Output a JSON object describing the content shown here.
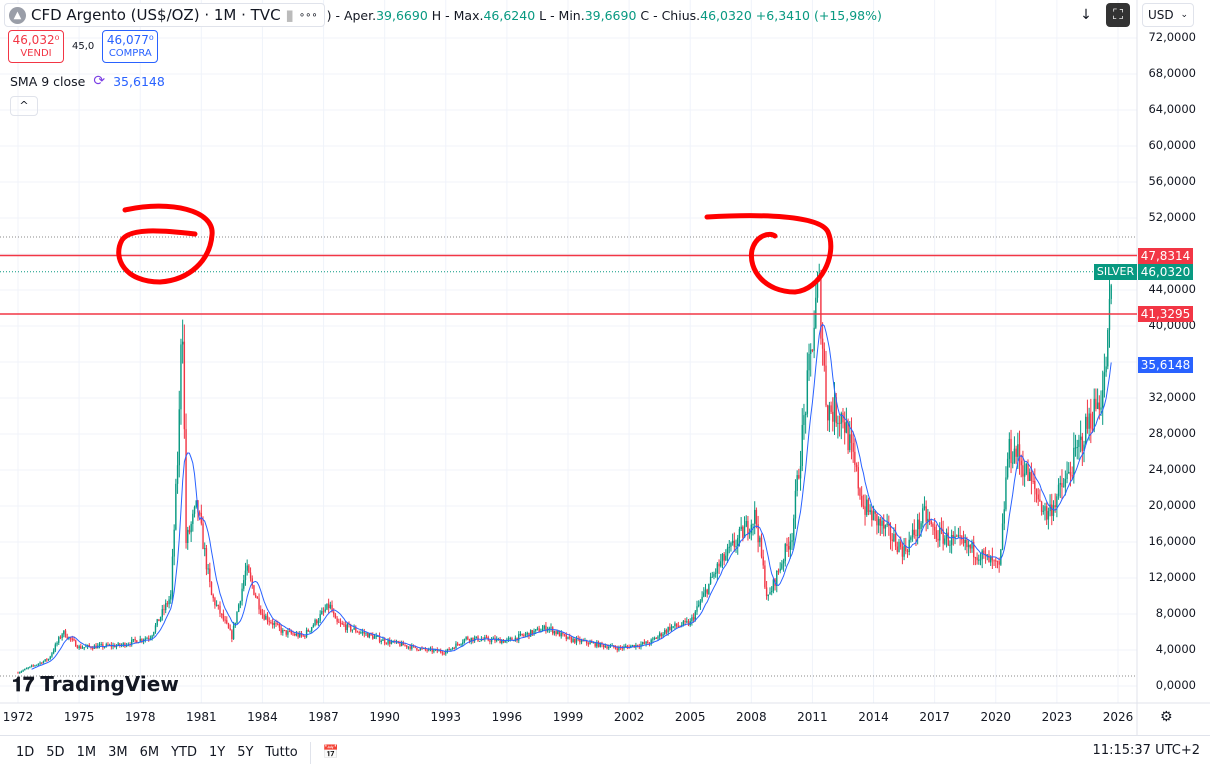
{
  "header": {
    "symbol": "CFD Argento (US$/OZ) · 1M · TVC",
    "more": "∘∘∘",
    "ohlc_prefix": ") - ",
    "open_label": "Aper.",
    "open": "39,6690",
    "high_label": " H - Max.",
    "high": "46,6240",
    "low_label": " L - Min.",
    "low": "39,6690",
    "close_label": " C - Chius.",
    "close": "46,0320",
    "change": " +6,3410 (+15,98%)"
  },
  "trade": {
    "sell_price": "46,032⁰",
    "sell_label": "VENDI",
    "spread": "45,0",
    "buy_price": "46,077⁰",
    "buy_label": "COMPRA"
  },
  "indicator": {
    "label": "SMA 9 close",
    "value": "35,6148"
  },
  "toolbar": {
    "currency": "USD"
  },
  "price_axis": {
    "labels": [
      "72,0000",
      "68,0000",
      "64,0000",
      "60,0000",
      "56,0000",
      "52,0000",
      "44,0000",
      "40,0000",
      "32,0000",
      "28,0000",
      "24,0000",
      "20,0000",
      "16,0000",
      "12,0000",
      "8,0000",
      "4,0000",
      "0,0000"
    ],
    "tags": [
      {
        "text": "47,8314",
        "value": 47.8314,
        "color": "#f23645"
      },
      {
        "text": "46,0320",
        "value": 46.032,
        "color": "#089981"
      },
      {
        "text": "41,3295",
        "value": 41.3295,
        "color": "#f23645"
      },
      {
        "text": "35,6148",
        "value": 35.6148,
        "color": "#2962ff"
      }
    ],
    "symbol_tag": "SILVER"
  },
  "time_axis": [
    "1972",
    "1975",
    "1978",
    "1981",
    "1984",
    "1987",
    "1990",
    "1993",
    "1996",
    "1999",
    "2002",
    "2005",
    "2008",
    "2011",
    "2014",
    "2017",
    "2020",
    "2023",
    "2026"
  ],
  "bottom": {
    "ranges": [
      "1D",
      "5D",
      "1M",
      "3M",
      "6M",
      "YTD",
      "1Y",
      "5Y",
      "Tutto"
    ],
    "clock": "11:15:37 UTC+2"
  },
  "brand": "TradingView",
  "chart_data": {
    "type": "candlestick",
    "title": "CFD Argento (US$/OZ) · 1M · TVC",
    "ylim": [
      0,
      72
    ],
    "xlim": [
      1972,
      2026
    ],
    "colors": {
      "up": "#089981",
      "down": "#f23645",
      "sma": "#2962ff",
      "hline": "#f23645"
    },
    "horizontal_lines": [
      47.8314,
      41.3295
    ],
    "keypoints": [
      [
        1972,
        1.5
      ],
      [
        1973.5,
        3
      ],
      [
        1974.2,
        6
      ],
      [
        1975,
        4.3
      ],
      [
        1977,
        4.5
      ],
      [
        1978.5,
        5.5
      ],
      [
        1979.5,
        10
      ],
      [
        1979.9,
        28
      ],
      [
        1980.05,
        45
      ],
      [
        1980.25,
        16
      ],
      [
        1980.8,
        20
      ],
      [
        1981.5,
        10
      ],
      [
        1982.5,
        5.5
      ],
      [
        1983.2,
        13
      ],
      [
        1984,
        8
      ],
      [
        1985,
        6
      ],
      [
        1986,
        5.5
      ],
      [
        1987.3,
        9
      ],
      [
        1987.6,
        7
      ],
      [
        1990,
        5
      ],
      [
        1992,
        4
      ],
      [
        1993,
        3.8
      ],
      [
        1994,
        5.3
      ],
      [
        1996,
        5
      ],
      [
        1998,
        6.5
      ],
      [
        1999,
        5.2
      ],
      [
        2001.5,
        4.2
      ],
      [
        2003,
        4.8
      ],
      [
        2004,
        6.5
      ],
      [
        2005,
        7
      ],
      [
        2006.3,
        13
      ],
      [
        2008.2,
        19
      ],
      [
        2008.8,
        9.5
      ],
      [
        2010,
        17
      ],
      [
        2011.3,
        45
      ],
      [
        2011.7,
        31
      ],
      [
        2012.5,
        30
      ],
      [
        2013.5,
        20
      ],
      [
        2015.5,
        15
      ],
      [
        2016.5,
        19
      ],
      [
        2017,
        17
      ],
      [
        2019,
        15
      ],
      [
        2020.2,
        13
      ],
      [
        2020.6,
        26
      ],
      [
        2021,
        26
      ],
      [
        2022.5,
        19
      ],
      [
        2023.5,
        23
      ],
      [
        2024.5,
        29
      ],
      [
        2025.3,
        33
      ],
      [
        2025.55,
        39.67
      ],
      [
        2025.7,
        46.03
      ]
    ],
    "sma_period": 9
  }
}
